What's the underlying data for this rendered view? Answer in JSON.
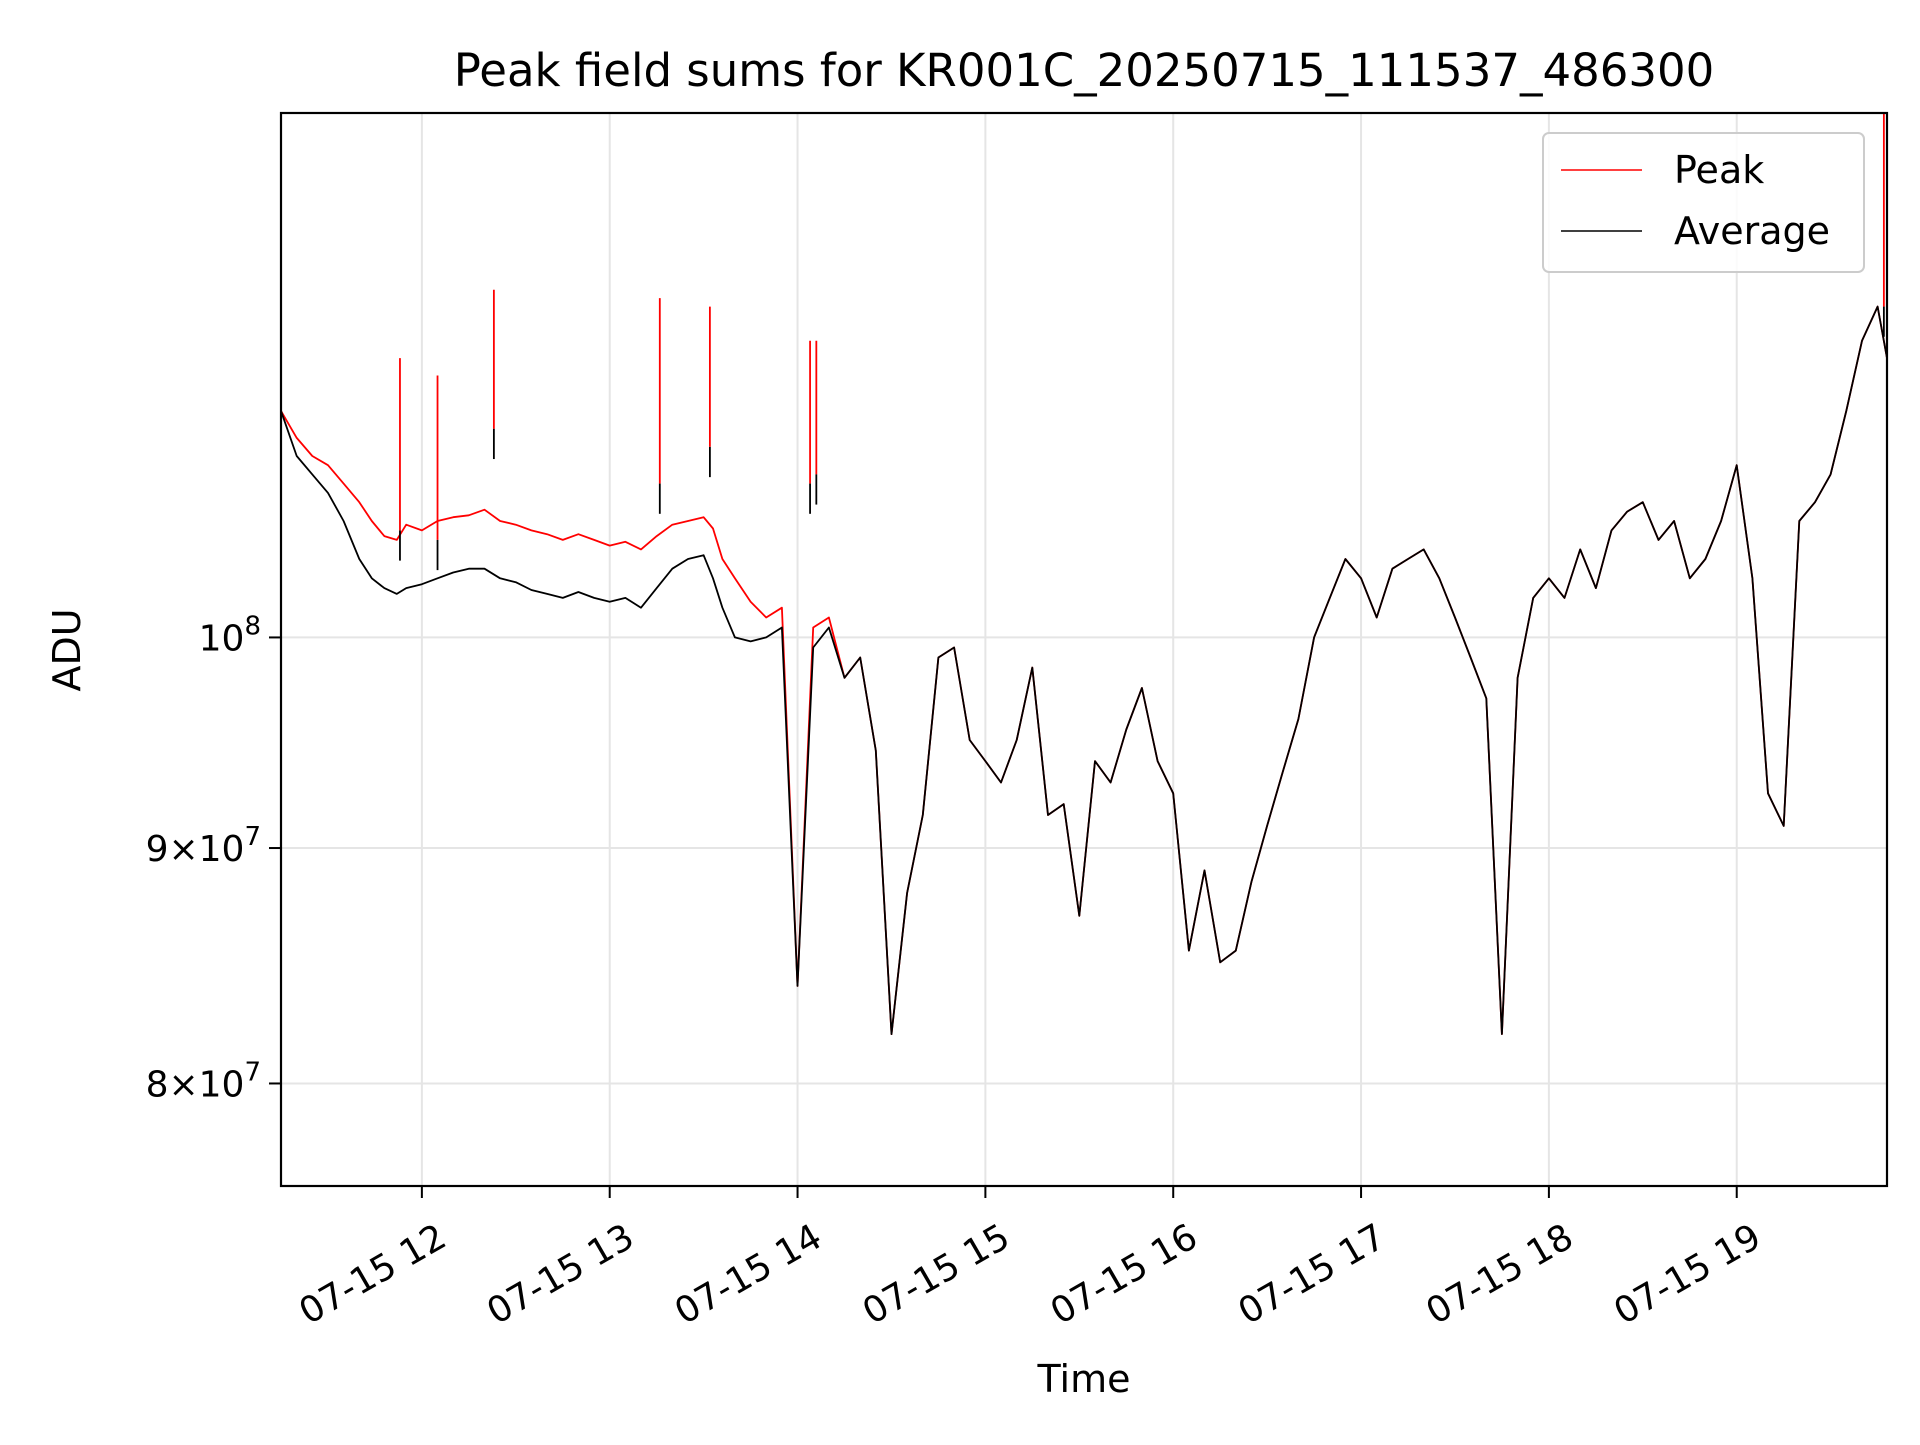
{
  "chart_data": {
    "type": "line",
    "title": "Peak field sums for KR001C_20250715_111537_486300",
    "xlabel": "Time",
    "ylabel": "ADU",
    "xlim": [
      "07-15 11:15",
      "07-15 19:48"
    ],
    "ylim": [
      76000000,
      130000000
    ],
    "yscale": "log",
    "grid": true,
    "legend_position": "upper right",
    "x_ticks": [
      "07-15 12",
      "07-15 13",
      "07-15 14",
      "07-15 15",
      "07-15 16",
      "07-15 17",
      "07-15 18",
      "07-15 19"
    ],
    "y_ticks": [
      {
        "value": 100000000,
        "mantissa": "",
        "exponent": "8"
      },
      {
        "value": 90000000,
        "mantissa": "9",
        "exponent": "7"
      },
      {
        "value": 80000000,
        "mantissa": "8",
        "exponent": "7"
      }
    ],
    "x": [
      "07-15 11:15",
      "07-15 11:20",
      "07-15 11:25",
      "07-15 11:30",
      "07-15 11:35",
      "07-15 11:40",
      "07-15 11:44",
      "07-15 11:48",
      "07-15 11:52",
      "07-15 11:55",
      "07-15 12:00",
      "07-15 12:05",
      "07-15 12:10",
      "07-15 12:15",
      "07-15 12:20",
      "07-15 12:25",
      "07-15 12:30",
      "07-15 12:35",
      "07-15 12:40",
      "07-15 12:45",
      "07-15 12:50",
      "07-15 12:55",
      "07-15 13:00",
      "07-15 13:05",
      "07-15 13:10",
      "07-15 13:15",
      "07-15 13:20",
      "07-15 13:25",
      "07-15 13:30",
      "07-15 13:33",
      "07-15 13:36",
      "07-15 13:40",
      "07-15 13:45",
      "07-15 13:50",
      "07-15 13:55",
      "07-15 14:00",
      "07-15 14:05",
      "07-15 14:10",
      "07-15 14:15",
      "07-15 14:20",
      "07-15 14:25",
      "07-15 14:30",
      "07-15 14:35",
      "07-15 14:40",
      "07-15 14:45",
      "07-15 14:50",
      "07-15 14:55",
      "07-15 15:00",
      "07-15 15:05",
      "07-15 15:10",
      "07-15 15:15",
      "07-15 15:20",
      "07-15 15:25",
      "07-15 15:30",
      "07-15 15:35",
      "07-15 15:40",
      "07-15 15:45",
      "07-15 15:50",
      "07-15 15:55",
      "07-15 16:00",
      "07-15 16:05",
      "07-15 16:10",
      "07-15 16:15",
      "07-15 16:20",
      "07-15 16:25",
      "07-15 16:30",
      "07-15 16:35",
      "07-15 16:40",
      "07-15 16:45",
      "07-15 16:50",
      "07-15 16:55",
      "07-15 17:00",
      "07-15 17:05",
      "07-15 17:10",
      "07-15 17:15",
      "07-15 17:20",
      "07-15 17:25",
      "07-15 17:30",
      "07-15 17:35",
      "07-15 17:40",
      "07-15 17:45",
      "07-15 17:50",
      "07-15 17:55",
      "07-15 18:00",
      "07-15 18:05",
      "07-15 18:10",
      "07-15 18:15",
      "07-15 18:20",
      "07-15 18:25",
      "07-15 18:30",
      "07-15 18:35",
      "07-15 18:40",
      "07-15 18:45",
      "07-15 18:50",
      "07-15 18:55",
      "07-15 19:00",
      "07-15 19:05",
      "07-15 19:10",
      "07-15 19:15",
      "07-15 19:20",
      "07-15 19:25",
      "07-15 19:30",
      "07-15 19:35",
      "07-15 19:40",
      "07-15 19:45",
      "07-15 19:48"
    ],
    "series": [
      {
        "name": "Peak",
        "color": "#ff0000",
        "values": [
          112000000,
          110500000,
          109500000,
          109000000,
          108000000,
          107000000,
          106000000,
          105200000,
          105000000,
          105800000,
          105500000,
          106000000,
          106200000,
          106300000,
          106600000,
          106000000,
          105800000,
          105500000,
          105300000,
          105000000,
          105300000,
          105000000,
          104700000,
          104900000,
          104500000,
          105200000,
          105800000,
          106000000,
          106200000,
          105600000,
          104000000,
          103000000,
          101800000,
          101000000,
          101500000,
          84000000,
          100500000,
          101000000,
          98000000,
          99000000,
          94500000,
          82000000,
          88000000,
          91500000,
          99000000,
          99500000,
          95000000,
          94000000,
          93000000,
          95000000,
          98500000,
          91500000,
          92000000,
          87000000,
          94000000,
          93000000,
          95500000,
          97500000,
          94000000,
          92500000,
          85500000,
          89000000,
          85000000,
          85500000,
          88500000,
          91000000,
          93500000,
          96000000,
          100000000,
          102000000,
          104000000,
          103000000,
          101000000,
          103500000,
          104000000,
          104500000,
          103000000,
          101000000,
          99000000,
          97000000,
          82000000,
          98000000,
          102000000,
          103000000,
          102000000,
          104500000,
          102500000,
          105500000,
          106500000,
          107000000,
          105000000,
          106000000,
          103000000,
          104000000,
          106000000,
          109000000,
          103000000,
          92500000,
          91000000,
          106000000,
          107000000,
          108500000,
          112000000,
          116000000,
          118000000,
          115000000
        ]
      },
      {
        "name": "Average",
        "color": "#000000",
        "values": [
          112000000,
          109500000,
          108500000,
          107500000,
          106000000,
          104000000,
          103000000,
          102500000,
          102200000,
          102500000,
          102700000,
          103000000,
          103300000,
          103500000,
          103500000,
          103000000,
          102800000,
          102400000,
          102200000,
          102000000,
          102300000,
          102000000,
          101800000,
          102000000,
          101500000,
          102500000,
          103500000,
          104000000,
          104200000,
          103000000,
          101500000,
          100000000,
          99800000,
          100000000,
          100500000,
          84000000,
          99500000,
          100500000,
          98000000,
          99000000,
          94500000,
          82000000,
          88000000,
          91500000,
          99000000,
          99500000,
          95000000,
          94000000,
          93000000,
          95000000,
          98500000,
          91500000,
          92000000,
          87000000,
          94000000,
          93000000,
          95500000,
          97500000,
          94000000,
          92500000,
          85500000,
          89000000,
          85000000,
          85500000,
          88500000,
          91000000,
          93500000,
          96000000,
          100000000,
          102000000,
          104000000,
          103000000,
          101000000,
          103500000,
          104000000,
          104500000,
          103000000,
          101000000,
          99000000,
          97000000,
          82000000,
          98000000,
          102000000,
          103000000,
          102000000,
          104500000,
          102500000,
          105500000,
          106500000,
          107000000,
          105000000,
          106000000,
          103000000,
          104000000,
          106000000,
          109000000,
          103000000,
          92500000,
          91000000,
          106000000,
          107000000,
          108500000,
          112000000,
          116000000,
          118000000,
          115000000
        ]
      }
    ],
    "peak_spikes": [
      {
        "x": "07-15 11:53",
        "peak": 115000000,
        "avg": 105500000
      },
      {
        "x": "07-15 12:05",
        "peak": 114000000,
        "avg": 105000000
      },
      {
        "x": "07-15 12:23",
        "peak": 119000000,
        "avg": 111000000
      },
      {
        "x": "07-15 13:16",
        "peak": 118500000,
        "avg": 108000000
      },
      {
        "x": "07-15 13:32",
        "peak": 118000000,
        "avg": 110000000
      },
      {
        "x": "07-15 14:04",
        "peak": 116000000,
        "avg": 108000000
      },
      {
        "x": "07-15 14:06",
        "peak": 116000000,
        "avg": 108500000
      },
      {
        "x": "07-15 19:47",
        "peak": 130000000,
        "avg": 118000000
      }
    ]
  }
}
